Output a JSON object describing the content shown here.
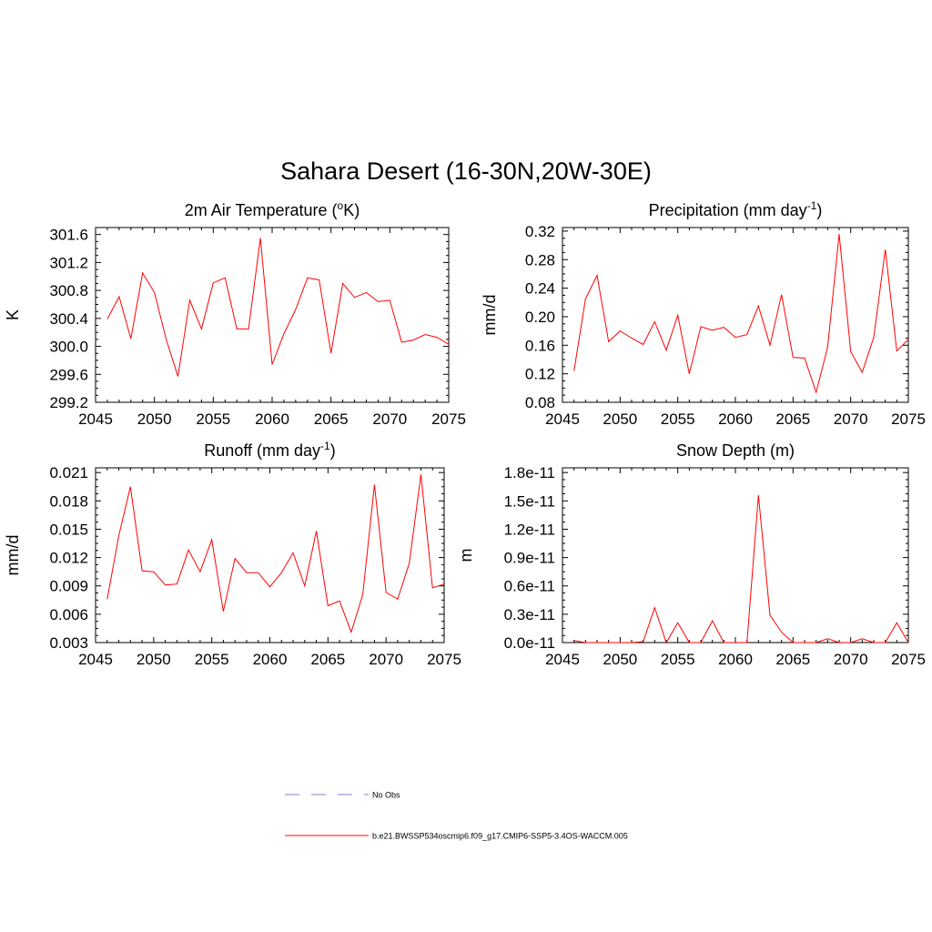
{
  "figure": {
    "main_title": "Sahara Desert (16-30N,20W-30E)"
  },
  "legend": {
    "entries": [
      {
        "label": "No Obs",
        "color": "#9a9adc",
        "style": "dashed"
      },
      {
        "label": "b.e21.BWSSP534oscmip6.f09_g17.CMIP6-SSP5-3.4OS-WACCM.005",
        "color": "#ff0000",
        "style": "solid"
      }
    ]
  },
  "chart_data": [
    {
      "type": "line",
      "title": "2m Air Temperature (",
      "title_sup": "o",
      "title_tail": "K)",
      "ylabel": "K",
      "xlim": [
        2045,
        2075
      ],
      "ylim": [
        299.2,
        301.7
      ],
      "xticks": [
        2045,
        2050,
        2055,
        2060,
        2065,
        2070,
        2075
      ],
      "yticks": [
        299.2,
        299.6,
        300.0,
        300.4,
        300.8,
        301.2,
        301.6
      ],
      "ytick_labels": [
        "299.2",
        "299.6",
        "300.0",
        "300.4",
        "300.8",
        "301.2",
        "301.6"
      ],
      "x": [
        2046,
        2047,
        2048,
        2049,
        2050,
        2051,
        2052,
        2053,
        2054,
        2055,
        2056,
        2057,
        2058,
        2059,
        2060,
        2061,
        2062,
        2063,
        2064,
        2065,
        2066,
        2067,
        2068,
        2069,
        2070,
        2071,
        2072,
        2073,
        2074,
        2075
      ],
      "series": [
        {
          "color": "#ff0000",
          "values": [
            300.39,
            300.71,
            300.11,
            301.05,
            300.77,
            300.1,
            299.57,
            300.66,
            300.25,
            300.91,
            300.98,
            300.25,
            300.25,
            301.55,
            299.74,
            300.18,
            300.53,
            300.98,
            300.95,
            299.9,
            300.9,
            300.7,
            300.77,
            300.64,
            300.66,
            300.06,
            300.09,
            300.17,
            300.13,
            300.03
          ]
        }
      ]
    },
    {
      "type": "line",
      "title": "Precipitation (mm day",
      "title_sup": "-1",
      "title_tail": ")",
      "ylabel": "mm/d",
      "xlim": [
        2045,
        2075
      ],
      "ylim": [
        0.08,
        0.325
      ],
      "xticks": [
        2045,
        2050,
        2055,
        2060,
        2065,
        2070,
        2075
      ],
      "yticks": [
        0.08,
        0.12,
        0.16,
        0.2,
        0.24,
        0.28,
        0.32
      ],
      "ytick_labels": [
        "0.08",
        "0.12",
        "0.16",
        "0.20",
        "0.24",
        "0.28",
        "0.32"
      ],
      "x": [
        2046,
        2047,
        2048,
        2049,
        2050,
        2051,
        2052,
        2053,
        2054,
        2055,
        2056,
        2057,
        2058,
        2059,
        2060,
        2061,
        2062,
        2063,
        2064,
        2065,
        2066,
        2067,
        2068,
        2069,
        2070,
        2071,
        2072,
        2073,
        2074,
        2075
      ],
      "series": [
        {
          "color": "#ff0000",
          "values": [
            0.124,
            0.225,
            0.258,
            0.165,
            0.18,
            0.17,
            0.161,
            0.193,
            0.153,
            0.202,
            0.12,
            0.186,
            0.181,
            0.185,
            0.171,
            0.175,
            0.215,
            0.16,
            0.231,
            0.143,
            0.142,
            0.094,
            0.157,
            0.316,
            0.151,
            0.122,
            0.171,
            0.294,
            0.152,
            0.168
          ]
        }
      ]
    },
    {
      "type": "line",
      "title": "Runoff (mm day",
      "title_sup": "-1",
      "title_tail": ")",
      "ylabel": "mm/d",
      "xlim": [
        2045,
        2075
      ],
      "ylim": [
        0.003,
        0.0215
      ],
      "xticks": [
        2045,
        2050,
        2055,
        2060,
        2065,
        2070,
        2075
      ],
      "yticks": [
        0.003,
        0.006,
        0.009,
        0.012,
        0.015,
        0.018,
        0.021
      ],
      "ytick_labels": [
        "0.003",
        "0.006",
        "0.009",
        "0.012",
        "0.015",
        "0.018",
        "0.021"
      ],
      "x": [
        2046,
        2047,
        2048,
        2049,
        2050,
        2051,
        2052,
        2053,
        2054,
        2055,
        2056,
        2057,
        2058,
        2059,
        2060,
        2061,
        2062,
        2063,
        2064,
        2065,
        2066,
        2067,
        2068,
        2069,
        2070,
        2071,
        2072,
        2073,
        2074,
        2075
      ],
      "series": [
        {
          "color": "#ff0000",
          "values": [
            0.0076,
            0.0143,
            0.0195,
            0.0106,
            0.0105,
            0.0091,
            0.0092,
            0.0128,
            0.0105,
            0.0139,
            0.0063,
            0.0119,
            0.0104,
            0.0104,
            0.0089,
            0.0104,
            0.0125,
            0.009,
            0.0148,
            0.0069,
            0.0074,
            0.0041,
            0.0081,
            0.0197,
            0.0083,
            0.0076,
            0.0114,
            0.0208,
            0.0088,
            0.0092
          ]
        }
      ]
    },
    {
      "type": "line",
      "title": "Snow Depth (m)",
      "title_sup": "",
      "title_tail": "",
      "ylabel": "m",
      "xlim": [
        2045,
        2075
      ],
      "ylim": [
        0,
        1.85e-11
      ],
      "xticks": [
        2045,
        2050,
        2055,
        2060,
        2065,
        2070,
        2075
      ],
      "yticks": [
        0,
        3e-12,
        6e-12,
        9e-12,
        1.2e-11,
        1.5e-11,
        1.8e-11
      ],
      "ytick_labels": [
        "0.0e-11",
        "0.3e-11",
        "0.6e-11",
        "0.9e-11",
        "1.2e-11",
        "1.5e-11",
        "1.8e-11"
      ],
      "x": [
        2046,
        2047,
        2048,
        2049,
        2050,
        2051,
        2052,
        2053,
        2054,
        2055,
        2056,
        2057,
        2058,
        2059,
        2060,
        2061,
        2062,
        2063,
        2064,
        2065,
        2066,
        2067,
        2068,
        2069,
        2070,
        2071,
        2072,
        2073,
        2074,
        2075
      ],
      "series": [
        {
          "color": "#ff0000",
          "values": [
            2e-13,
            0,
            0,
            0,
            0,
            0,
            1e-13,
            3.7e-12,
            0,
            2.1e-12,
            0,
            0,
            2.3e-12,
            0,
            0,
            0,
            1.56e-11,
            2.9e-12,
            1.1e-12,
            0,
            0,
            0,
            4e-13,
            0,
            0,
            4e-13,
            0,
            0,
            2.1e-12,
            0
          ]
        }
      ]
    }
  ]
}
